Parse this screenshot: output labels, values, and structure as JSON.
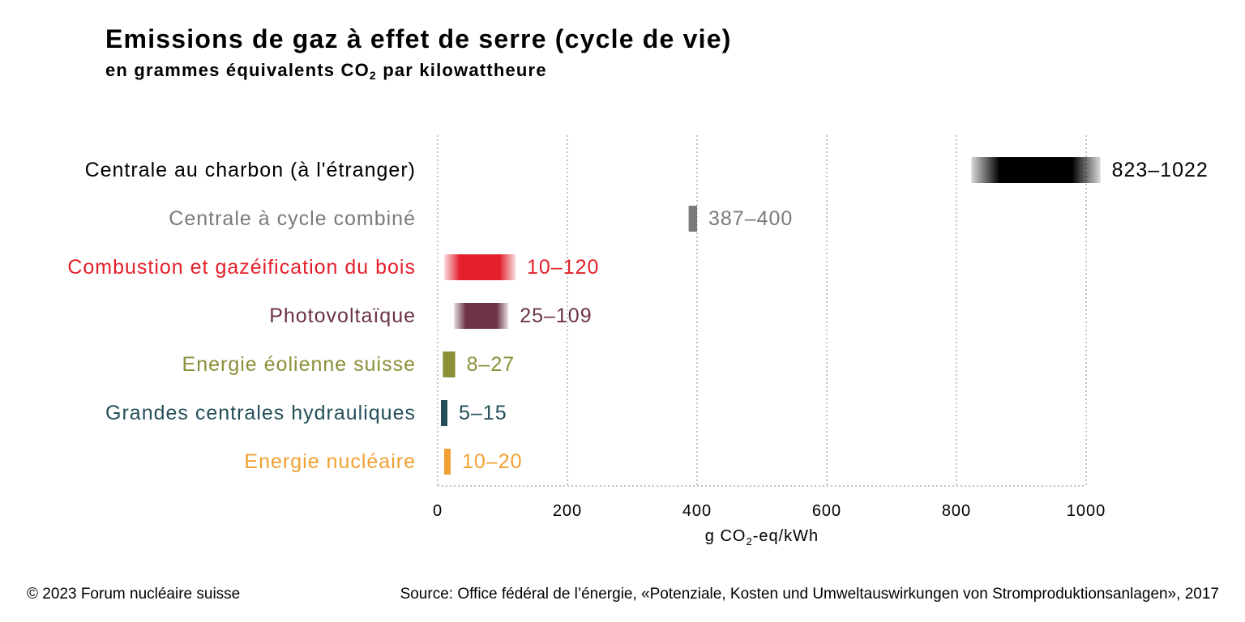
{
  "title": "Emissions de gaz à effet de serre (cycle de vie)",
  "subtitle": {
    "prefix": "en grammes équivalents CO",
    "sub": "2",
    "suffix": " par kilowattheure"
  },
  "chart_data": {
    "type": "bar",
    "orientation": "horizontal-range",
    "title": "Emissions de gaz à effet de serre (cycle de vie)",
    "subtitle": "en grammes équivalents CO2 par kilowattheure",
    "xlabel": {
      "prefix": "g CO",
      "sub": "2",
      "suffix": "-eq/kWh"
    },
    "xlim": [
      0,
      1000
    ],
    "xticks": [
      0,
      200,
      400,
      600,
      800,
      1000
    ],
    "grid": "vertical-dotted",
    "categories": [
      "Centrale au charbon (à l'étranger)",
      "Centrale à cycle combiné",
      "Combustion et gazéification du bois",
      "Photovoltaïque",
      "Energie éolienne suisse",
      "Grandes centrales hydrauliques",
      "Energie nucléaire"
    ],
    "ranges": [
      {
        "min": 823,
        "max": 1022,
        "label": "823–1022",
        "color": "#000000"
      },
      {
        "min": 387,
        "max": 400,
        "label": "387–400",
        "color": "#7a7a7c"
      },
      {
        "min": 10,
        "max": 120,
        "label": "10–120",
        "color": "#e3202b"
      },
      {
        "min": 25,
        "max": 109,
        "label": "25–109",
        "color": "#6b3344"
      },
      {
        "min": 8,
        "max": 27,
        "label": "8–27",
        "color": "#8a8f38"
      },
      {
        "min": 5,
        "max": 15,
        "label": "5–15",
        "color": "#244f59"
      },
      {
        "min": 10,
        "max": 20,
        "label": "10–20",
        "color": "#f0a030"
      }
    ]
  },
  "footer": {
    "copyright": "© 2023 Forum nucléaire suisse",
    "source": "Source: Office fédéral de l’énergie, «Potenziale, Kosten und Umweltauswirkungen von Stromproduktionsanlagen», 2017"
  }
}
